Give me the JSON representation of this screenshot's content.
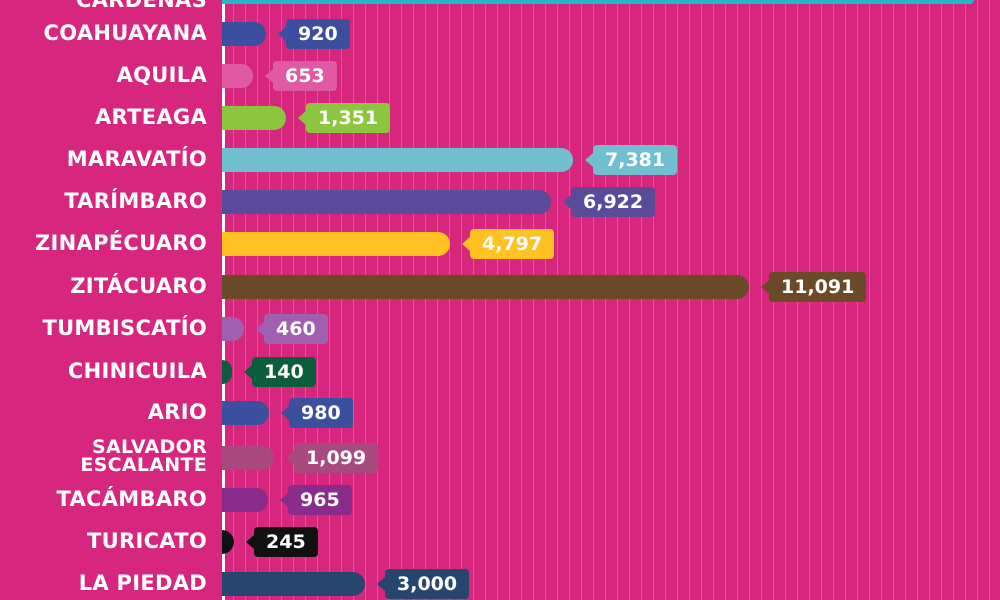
{
  "chart_data": {
    "type": "bar",
    "orientation": "horizontal",
    "grid": true,
    "categories": [
      "CÁRDENAS",
      "COAHUAYANA",
      "AQUILA",
      "ARTEAGA",
      "MARAVATÍO",
      "TARÍMBARO",
      "ZINAPÉCUARO",
      "ZITÁCUARO",
      "TUMBISCATÍO",
      "CHINICUILA",
      "ARIO",
      "SALVADOR ESCALANTE",
      "TACÁMBARO",
      "TURICATO",
      "LA PIEDAD"
    ],
    "values": [
      null,
      920,
      653,
      1351,
      7381,
      6922,
      4797,
      11091,
      460,
      140,
      980,
      1099,
      965,
      245,
      3000
    ],
    "value_labels": [
      "",
      "920",
      "653",
      "1,351",
      "7,381",
      "6,922",
      "4,797",
      "11,091",
      "460",
      "140",
      "980",
      "1,099",
      "965",
      "245",
      "3,000"
    ],
    "colors": {
      "background": "#d6267e",
      "top_bar": "#22b7c9",
      "bars": [
        "#22b7c9",
        "#3b4f9e",
        "#e05aa3",
        "#8cc63f",
        "#6fbfd0",
        "#5a4a9a",
        "#ffc222",
        "#6b4a2a",
        "#a05fb0",
        "#0b5e3b",
        "#3b4f9e",
        "#a84a7e",
        "#8a2c8c",
        "#111111",
        "#27466e"
      ]
    }
  }
}
